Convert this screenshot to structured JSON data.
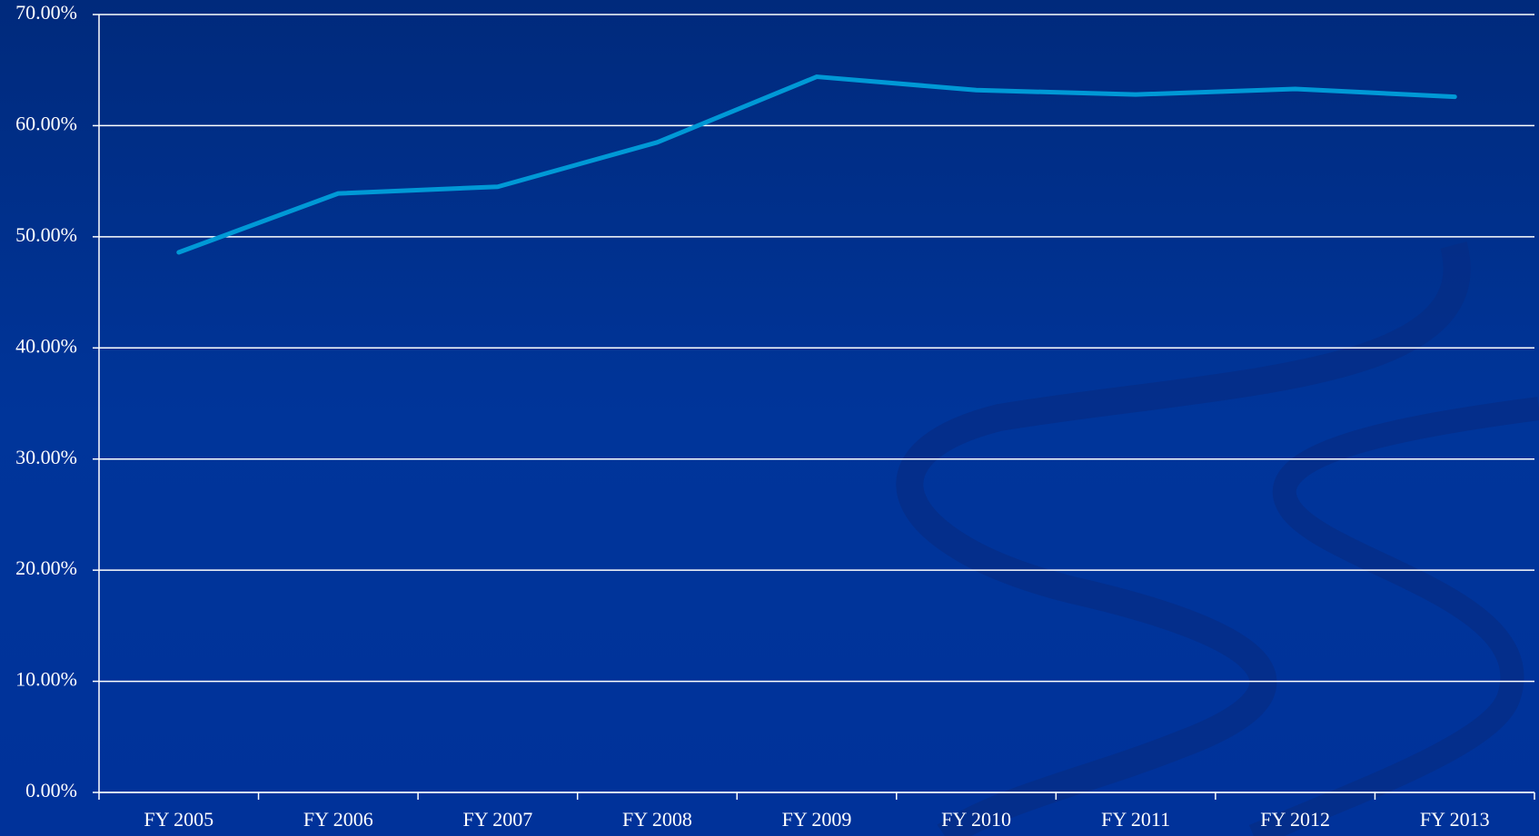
{
  "chart_data": {
    "type": "line",
    "categories": [
      "FY 2005",
      "FY 2006",
      "FY 2007",
      "FY 2008",
      "FY 2009",
      "FY 2010",
      "FY 2011",
      "FY 2012",
      "FY 2013"
    ],
    "series": [
      {
        "color": "#0099d6",
        "values": [
          48.6,
          53.9,
          54.5,
          58.5,
          64.4,
          63.2,
          62.8,
          63.3,
          62.6
        ]
      }
    ],
    "ylim": [
      0,
      70
    ],
    "yticks": [
      {
        "value": 0,
        "label": "0.00%"
      },
      {
        "value": 10,
        "label": "10.00%"
      },
      {
        "value": 20,
        "label": "20.00%"
      },
      {
        "value": 30,
        "label": "30.00%"
      },
      {
        "value": 40,
        "label": "40.00%"
      },
      {
        "value": 50,
        "label": "50.00%"
      },
      {
        "value": 60,
        "label": "60.00%"
      },
      {
        "value": 70,
        "label": "70.00%"
      }
    ],
    "grid": true
  }
}
